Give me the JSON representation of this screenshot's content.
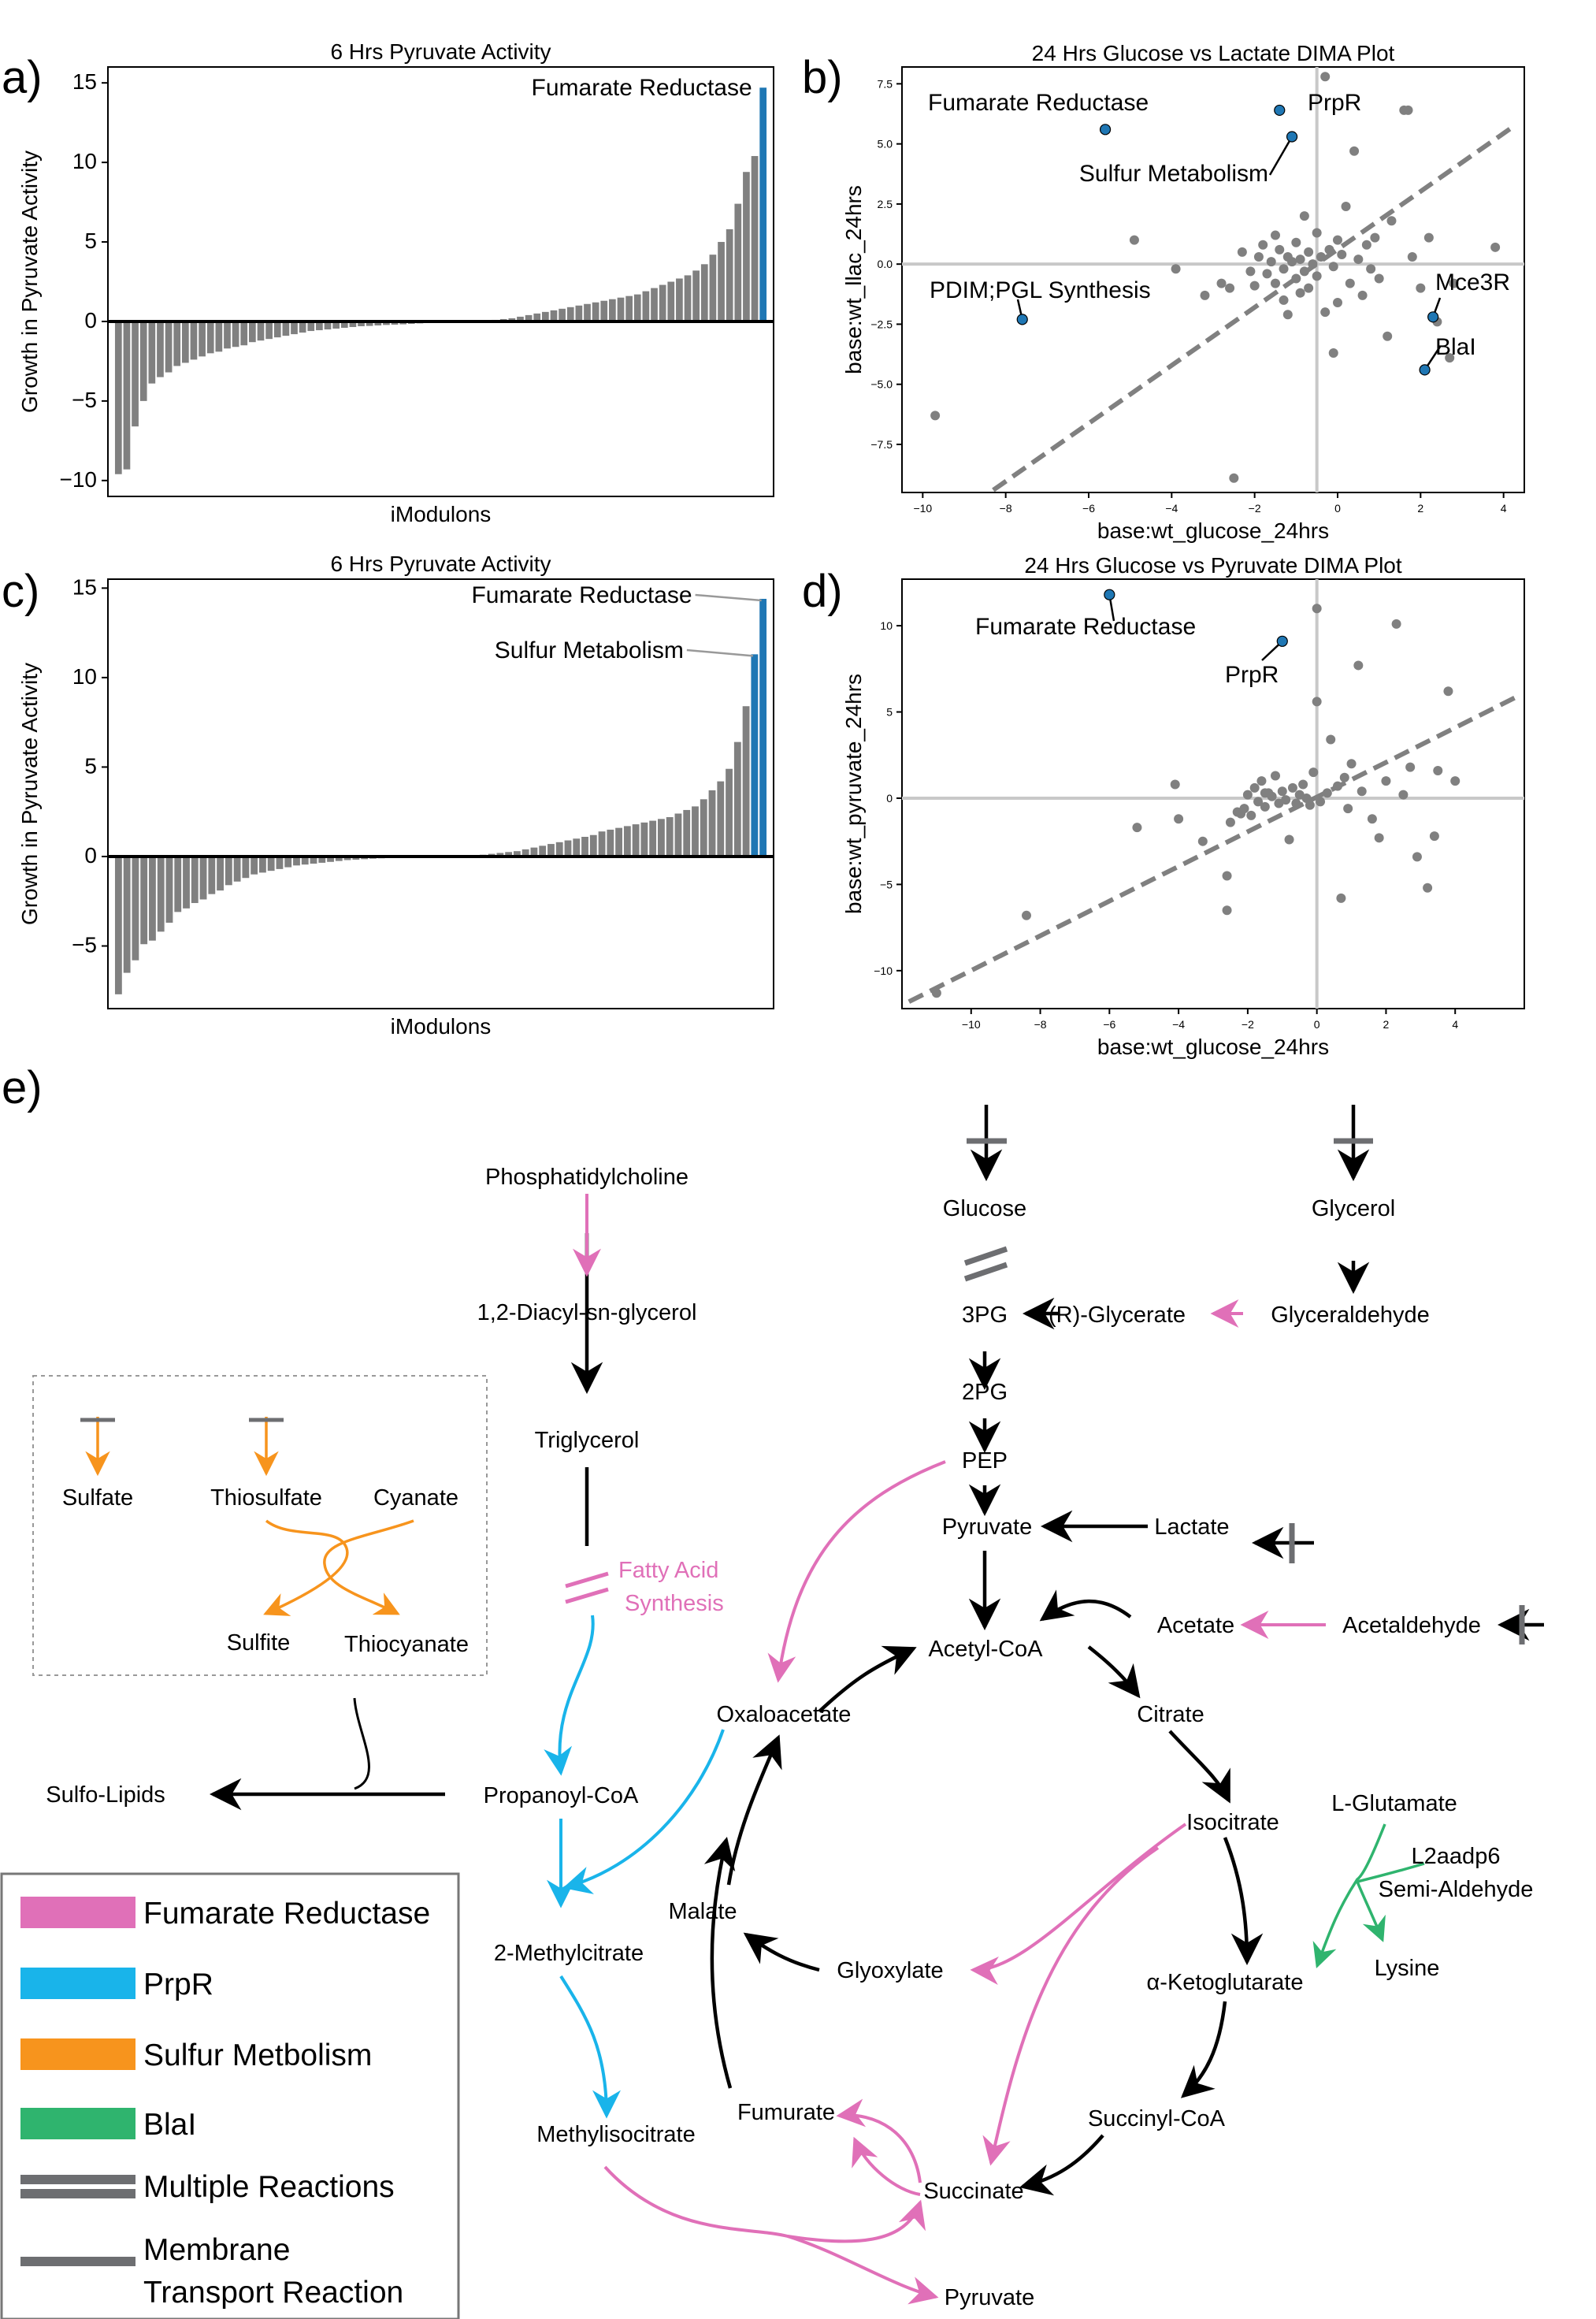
{
  "panels": {
    "a": {
      "label": "a)"
    },
    "b": {
      "label": "b)"
    },
    "c": {
      "label": "c)"
    },
    "d": {
      "label": "d)"
    },
    "e": {
      "label": "e)"
    }
  },
  "chart_data": [
    {
      "id": "a",
      "type": "bar",
      "title": "6 Hrs Pyruvate Activity",
      "xlabel": "iModulons",
      "ylabel": "Growth in Pyruvate Activity",
      "ylim": [
        -11,
        16
      ],
      "yticks": [
        -10,
        -5,
        0,
        5,
        10,
        15
      ],
      "highlight_color": "#1f77b4",
      "base_color": "#808080",
      "values": [
        -9.6,
        -9.3,
        -6.6,
        -5.0,
        -3.9,
        -3.5,
        -3.2,
        -2.8,
        -2.6,
        -2.4,
        -2.2,
        -2.0,
        -1.9,
        -1.7,
        -1.6,
        -1.5,
        -1.3,
        -1.2,
        -1.1,
        -1.0,
        -0.9,
        -0.8,
        -0.7,
        -0.6,
        -0.55,
        -0.5,
        -0.45,
        -0.4,
        -0.35,
        -0.3,
        -0.28,
        -0.25,
        -0.22,
        -0.2,
        -0.18,
        -0.15,
        -0.12,
        -0.1,
        -0.08,
        -0.06,
        -0.04,
        -0.02,
        0.02,
        0.05,
        0.08,
        0.1,
        0.15,
        0.2,
        0.3,
        0.4,
        0.5,
        0.6,
        0.7,
        0.8,
        0.9,
        1.0,
        1.1,
        1.2,
        1.3,
        1.4,
        1.5,
        1.6,
        1.7,
        1.9,
        2.1,
        2.3,
        2.5,
        2.7,
        2.9,
        3.2,
        3.6,
        4.2,
        5.0,
        5.8,
        7.4,
        9.4,
        10.4,
        14.7
      ],
      "highlight_index": [
        77
      ],
      "annotations": [
        {
          "text": "Fumarate Reductase",
          "index": 77
        }
      ]
    },
    {
      "id": "b",
      "type": "scatter",
      "title": "24 Hrs Glucose vs Lactate DIMA Plot",
      "xlabel": "base:wt_glucose_24hrs",
      "ylabel": "base:wt_llac_24hrs",
      "xlim": [
        -10.5,
        4.5
      ],
      "ylim": [
        -9.5,
        8.2
      ],
      "xticks": [
        -10,
        -8,
        -6,
        -4,
        -2,
        0,
        2,
        4
      ],
      "yticks": [
        -7.5,
        -5.0,
        -2.5,
        0.0,
        2.5,
        5.0,
        7.5
      ],
      "hline": 0,
      "vline": -0.5,
      "fit_line": [
        [
          -8.3,
          -9.4
        ],
        [
          4.3,
          5.8
        ]
      ],
      "points": [
        [
          -9.7,
          -6.3
        ],
        [
          -4.9,
          1.0
        ],
        [
          -3.9,
          -0.2
        ],
        [
          -3.2,
          -1.3
        ],
        [
          -2.8,
          -0.8
        ],
        [
          -2.6,
          -1.0
        ],
        [
          -2.5,
          -8.9
        ],
        [
          -2.3,
          0.5
        ],
        [
          -2.1,
          -0.3
        ],
        [
          -2.0,
          -0.9
        ],
        [
          -1.9,
          0.3
        ],
        [
          -1.8,
          0.8
        ],
        [
          -1.7,
          -0.4
        ],
        [
          -1.6,
          0.1
        ],
        [
          -1.5,
          1.2
        ],
        [
          -1.5,
          -0.8
        ],
        [
          -1.4,
          0.6
        ],
        [
          -1.3,
          -0.2
        ],
        [
          -1.3,
          -1.5
        ],
        [
          -1.2,
          0.3
        ],
        [
          -1.2,
          -2.1
        ],
        [
          -1.1,
          0.1
        ],
        [
          -1.0,
          0.9
        ],
        [
          -1.0,
          -0.6
        ],
        [
          -0.9,
          0.2
        ],
        [
          -0.9,
          -1.2
        ],
        [
          -0.8,
          2.0
        ],
        [
          -0.8,
          -0.3
        ],
        [
          -0.7,
          0.5
        ],
        [
          -0.7,
          -1.0
        ],
        [
          -0.6,
          0.0
        ],
        [
          -0.5,
          1.3
        ],
        [
          -0.5,
          -0.5
        ],
        [
          -0.4,
          0.3
        ],
        [
          -0.3,
          7.8
        ],
        [
          -0.3,
          -2.0
        ],
        [
          -0.2,
          0.6
        ],
        [
          -0.1,
          -0.1
        ],
        [
          0.0,
          1.0
        ],
        [
          0.0,
          -1.6
        ],
        [
          -0.1,
          -3.7
        ],
        [
          0.1,
          0.4
        ],
        [
          0.2,
          2.4
        ],
        [
          0.3,
          -0.8
        ],
        [
          0.4,
          4.7
        ],
        [
          0.5,
          0.2
        ],
        [
          0.6,
          -1.3
        ],
        [
          0.7,
          0.8
        ],
        [
          0.8,
          -0.2
        ],
        [
          0.9,
          1.1
        ],
        [
          1.0,
          -0.6
        ],
        [
          1.2,
          -3.0
        ],
        [
          1.3,
          1.8
        ],
        [
          1.6,
          6.4
        ],
        [
          1.7,
          6.4
        ],
        [
          1.8,
          0.3
        ],
        [
          2.0,
          -1.0
        ],
        [
          2.2,
          1.1
        ],
        [
          2.4,
          -2.4
        ],
        [
          2.7,
          -3.9
        ],
        [
          2.8,
          -0.8
        ],
        [
          3.8,
          0.7
        ],
        [
          -5.6,
          5.6
        ],
        [
          -1.4,
          6.4
        ],
        [
          -1.1,
          5.3
        ],
        [
          -7.6,
          -2.3
        ],
        [
          2.3,
          -2.2
        ],
        [
          2.1,
          -4.4
        ]
      ],
      "highlighted": [
        {
          "text": "Fumarate Reductase",
          "x": -5.6,
          "y": 5.6
        },
        {
          "text": "PrpR",
          "x": -1.4,
          "y": 6.4
        },
        {
          "text": "Sulfur Metabolism",
          "x": -1.1,
          "y": 5.3
        },
        {
          "text": "PDIM;PGL Synthesis",
          "x": -7.6,
          "y": -2.3
        },
        {
          "text": "Mce3R",
          "x": 2.3,
          "y": -2.2
        },
        {
          "text": "BlaI",
          "x": 2.1,
          "y": -4.4
        }
      ]
    },
    {
      "id": "c",
      "type": "bar",
      "title": "6 Hrs Pyruvate Activity",
      "xlabel": "iModulons",
      "ylabel": "Growth in Pyruvate Activity",
      "ylim": [
        -8.5,
        15.5
      ],
      "yticks": [
        -5,
        0,
        5,
        10,
        15
      ],
      "highlight_color": "#1f77b4",
      "base_color": "#808080",
      "values": [
        -7.7,
        -6.5,
        -5.8,
        -4.9,
        -4.7,
        -4.2,
        -3.7,
        -3.1,
        -2.9,
        -2.6,
        -2.4,
        -2.1,
        -1.9,
        -1.6,
        -1.4,
        -1.2,
        -1.0,
        -0.9,
        -0.8,
        -0.7,
        -0.6,
        -0.5,
        -0.45,
        -0.4,
        -0.35,
        -0.3,
        -0.25,
        -0.2,
        -0.18,
        -0.15,
        -0.12,
        -0.1,
        -0.08,
        -0.06,
        -0.04,
        -0.03,
        -0.02,
        -0.01,
        0.01,
        0.02,
        0.03,
        0.05,
        0.08,
        0.1,
        0.15,
        0.2,
        0.25,
        0.3,
        0.4,
        0.5,
        0.6,
        0.7,
        0.8,
        0.9,
        1.0,
        1.1,
        1.2,
        1.4,
        1.5,
        1.6,
        1.7,
        1.8,
        1.9,
        2.0,
        2.1,
        2.2,
        2.4,
        2.6,
        2.8,
        3.2,
        3.7,
        4.2,
        4.9,
        6.4,
        8.4,
        11.3,
        14.4
      ],
      "highlight_index": [
        75,
        76
      ],
      "annotations": [
        {
          "text": "Fumarate Reductase",
          "index": 76
        },
        {
          "text": "Sulfur Metabolism",
          "index": 75
        }
      ]
    },
    {
      "id": "d",
      "type": "scatter",
      "title": "24 Hrs Glucose vs Pyruvate DIMA Plot",
      "xlabel": "base:wt_glucose_24hrs",
      "ylabel": "base:wt_pyruvate_24hrs",
      "xlim": [
        -12,
        6
      ],
      "ylim": [
        -12.2,
        12.7
      ],
      "xticks": [
        -10,
        -8,
        -6,
        -4,
        -2,
        0,
        2,
        4
      ],
      "yticks": [
        -10,
        -5,
        0,
        5,
        10
      ],
      "hline": 0,
      "vline": 0,
      "fit_line": [
        [
          -11.8,
          -11.8
        ],
        [
          5.9,
          6.0
        ]
      ],
      "points": [
        [
          -11.0,
          -11.3
        ],
        [
          -8.4,
          -6.8
        ],
        [
          -5.2,
          -1.7
        ],
        [
          -4.1,
          0.8
        ],
        [
          -4.0,
          -1.2
        ],
        [
          -3.3,
          -2.5
        ],
        [
          -2.6,
          -6.5
        ],
        [
          -2.6,
          -4.5
        ],
        [
          -2.5,
          -1.4
        ],
        [
          -2.3,
          -0.8
        ],
        [
          -2.1,
          -0.6
        ],
        [
          -2.0,
          0.2
        ],
        [
          -1.9,
          -1.0
        ],
        [
          -1.8,
          0.6
        ],
        [
          -1.7,
          -0.2
        ],
        [
          -1.6,
          1.0
        ],
        [
          -1.5,
          -0.5
        ],
        [
          -1.4,
          0.3
        ],
        [
          -1.3,
          0.1
        ],
        [
          -1.2,
          1.3
        ],
        [
          -1.1,
          -0.3
        ],
        [
          -1.0,
          0.4
        ],
        [
          -0.9,
          -0.1
        ],
        [
          -0.8,
          -2.4
        ],
        [
          -0.7,
          0.6
        ],
        [
          -0.6,
          -0.3
        ],
        [
          -0.5,
          0.2
        ],
        [
          -0.4,
          0.8
        ],
        [
          -0.3,
          0.0
        ],
        [
          -0.2,
          -0.4
        ],
        [
          -0.1,
          1.5
        ],
        [
          0.0,
          5.6
        ],
        [
          0.1,
          -0.2
        ],
        [
          0.3,
          0.3
        ],
        [
          0.4,
          3.4
        ],
        [
          0.6,
          0.7
        ],
        [
          0.7,
          -5.8
        ],
        [
          0.8,
          1.2
        ],
        [
          0.9,
          -0.6
        ],
        [
          1.0,
          2.0
        ],
        [
          1.2,
          7.7
        ],
        [
          1.3,
          0.4
        ],
        [
          1.6,
          -1.2
        ],
        [
          1.8,
          -2.3
        ],
        [
          2.0,
          1.0
        ],
        [
          2.3,
          10.1
        ],
        [
          2.5,
          0.2
        ],
        [
          2.7,
          1.8
        ],
        [
          2.9,
          -3.4
        ],
        [
          3.2,
          -5.2
        ],
        [
          3.4,
          -2.2
        ],
        [
          3.5,
          1.6
        ],
        [
          3.8,
          6.2
        ],
        [
          4.0,
          1.0
        ],
        [
          -6.0,
          11.8
        ],
        [
          -1.0,
          9.1
        ],
        [
          0.0,
          11.0
        ],
        [
          -2.2,
          -0.9
        ],
        [
          -1.5,
          0.3
        ]
      ],
      "highlighted": [
        {
          "text": "Fumarate Reductase",
          "x": -6.0,
          "y": 11.8
        },
        {
          "text": "PrpR",
          "x": -1.0,
          "y": 9.1
        }
      ]
    }
  ],
  "pathway": {
    "nodes": {
      "phosphatidylcholine": "Phosphatidylcholine",
      "diacyl": "1,2-Diacyl-sn-glycerol",
      "triglycerol": "Triglycerol",
      "fatty_acid": "Fatty Acid",
      "synthesis": "Synthesis",
      "propanoyl": "Propanoyl-CoA",
      "methylcitrate": "2-Methylcitrate",
      "methylisocitrate": "Methylisocitrate",
      "sulfolipids": "Sulfo-Lipids",
      "sulfate": "Sulfate",
      "thiosulfate": "Thiosulfate",
      "cyanate": "Cyanate",
      "sulfite": "Sulfite",
      "thiocyanate": "Thiocyanate",
      "glucose": "Glucose",
      "glycerol": "Glycerol",
      "pg3": "3PG",
      "r_glycerate": "(R)-Glycerate",
      "glyceraldehyde": "Glyceraldehyde",
      "pg2": "2PG",
      "pep": "PEP",
      "pyruvate": "Pyruvate",
      "lactate": "Lactate",
      "acetyl_coa": "Acetyl-CoA",
      "acetate": "Acetate",
      "acetaldehyde": "Acetaldehyde",
      "oxaloacetate": "Oxaloacetate",
      "citrate": "Citrate",
      "isocitrate": "Isocitrate",
      "malate": "Malate",
      "glyoxylate": "Glyoxylate",
      "akg": "α-Ketoglutarate",
      "fumurate": "Fumurate",
      "succinyl_coa": "Succinyl-CoA",
      "succinate": "Succinate",
      "pyruvate2": "Pyruvate",
      "l_glutamate": "L-Glutamate",
      "l2aadp6": "L2aadp6",
      "semi_aldehyde": "Semi-Aldehyde",
      "lysine": "Lysine"
    },
    "colors": {
      "fumarate_reductase": "#e070b8",
      "prpr": "#19b4ea",
      "sulfur": "#f7941d",
      "blai": "#2fb46e",
      "neutral": "#6d6e71"
    }
  },
  "legend": [
    {
      "label": "Fumarate Reductase",
      "color": "#e070b8",
      "kind": "bar"
    },
    {
      "label": "PrpR",
      "color": "#19b4ea",
      "kind": "bar"
    },
    {
      "label": "Sulfur Metbolism",
      "color": "#f7941d",
      "kind": "bar"
    },
    {
      "label": "BlaI",
      "color": "#2fb46e",
      "kind": "bar"
    },
    {
      "label": "Multiple Reactions",
      "color": "#6d6e71",
      "kind": "double"
    },
    {
      "label": "Membrane",
      "label2": "Transport Reaction",
      "color": "#6d6e71",
      "kind": "single"
    }
  ]
}
